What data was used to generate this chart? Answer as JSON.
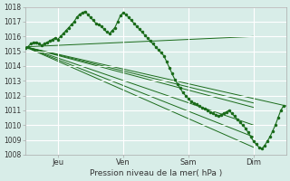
{
  "title": "",
  "xlabel": "Pression niveau de la mer( hPa )",
  "ylabel": "",
  "bg_color": "#d8ede8",
  "grid_color": "#ffffff",
  "line_color": "#1a6b1a",
  "ylim": [
    1008,
    1018
  ],
  "yticks": [
    1008,
    1009,
    1010,
    1011,
    1012,
    1013,
    1014,
    1015,
    1016,
    1017,
    1018
  ],
  "day_labels": [
    "Jeu",
    "Ven",
    "Sam",
    "Dim"
  ],
  "day_positions": [
    24,
    72,
    120,
    168
  ],
  "total_hours": 192,
  "series": [
    {
      "x": [
        0,
        168
      ],
      "y": [
        1015.2,
        1011.2
      ],
      "dots": false
    },
    {
      "x": [
        0,
        168
      ],
      "y": [
        1015.3,
        1011.5
      ],
      "dots": false
    },
    {
      "x": [
        0,
        168
      ],
      "y": [
        1015.4,
        1012.0
      ],
      "dots": false
    },
    {
      "x": [
        0,
        168
      ],
      "y": [
        1015.5,
        1012.5
      ],
      "dots": false
    },
    {
      "x": [
        0,
        168
      ],
      "y": [
        1015.6,
        1016.0
      ],
      "dots": false
    }
  ],
  "main_x": [
    0,
    2,
    4,
    6,
    8,
    10,
    12,
    14,
    16,
    18,
    20,
    22,
    24,
    26,
    28,
    30,
    32,
    34,
    36,
    38,
    40,
    42,
    44,
    46,
    48,
    50,
    52,
    54,
    56,
    58,
    60,
    62,
    64,
    66,
    68,
    70,
    72,
    74,
    76,
    78,
    80,
    82,
    84,
    86,
    88,
    90,
    92,
    94,
    96,
    98,
    100,
    102,
    104,
    106,
    108,
    110,
    112,
    114,
    116,
    118,
    120,
    122,
    124,
    126,
    128,
    130,
    132,
    134,
    136,
    138,
    140,
    142,
    144,
    146,
    148,
    150,
    152,
    154,
    156,
    158,
    160,
    162,
    164,
    166,
    168,
    170,
    172,
    174,
    176,
    178,
    180,
    182,
    184,
    186,
    188,
    190
  ],
  "main_y": [
    1015.2,
    1015.3,
    1015.5,
    1015.6,
    1015.6,
    1015.5,
    1015.4,
    1015.5,
    1015.6,
    1015.7,
    1015.8,
    1015.9,
    1015.8,
    1016.0,
    1016.2,
    1016.4,
    1016.6,
    1016.8,
    1017.0,
    1017.3,
    1017.5,
    1017.6,
    1017.7,
    1017.5,
    1017.3,
    1017.1,
    1016.9,
    1016.8,
    1016.7,
    1016.5,
    1016.3,
    1016.2,
    1016.4,
    1016.6,
    1017.0,
    1017.4,
    1017.6,
    1017.5,
    1017.3,
    1017.1,
    1016.9,
    1016.7,
    1016.5,
    1016.3,
    1016.1,
    1015.9,
    1015.7,
    1015.5,
    1015.3,
    1015.1,
    1014.9,
    1014.7,
    1014.3,
    1013.9,
    1013.5,
    1013.1,
    1012.8,
    1012.5,
    1012.2,
    1012.0,
    1011.8,
    1011.6,
    1011.5,
    1011.4,
    1011.3,
    1011.2,
    1011.1,
    1011.0,
    1010.9,
    1010.8,
    1010.7,
    1010.6,
    1010.7,
    1010.8,
    1010.9,
    1011.0,
    1010.8,
    1010.6,
    1010.4,
    1010.2,
    1010.0,
    1009.8,
    1009.5,
    1009.2,
    1008.9,
    1008.7,
    1008.5,
    1008.4,
    1008.6,
    1008.9,
    1009.2,
    1009.6,
    1010.0,
    1010.5,
    1011.0,
    1011.3
  ]
}
